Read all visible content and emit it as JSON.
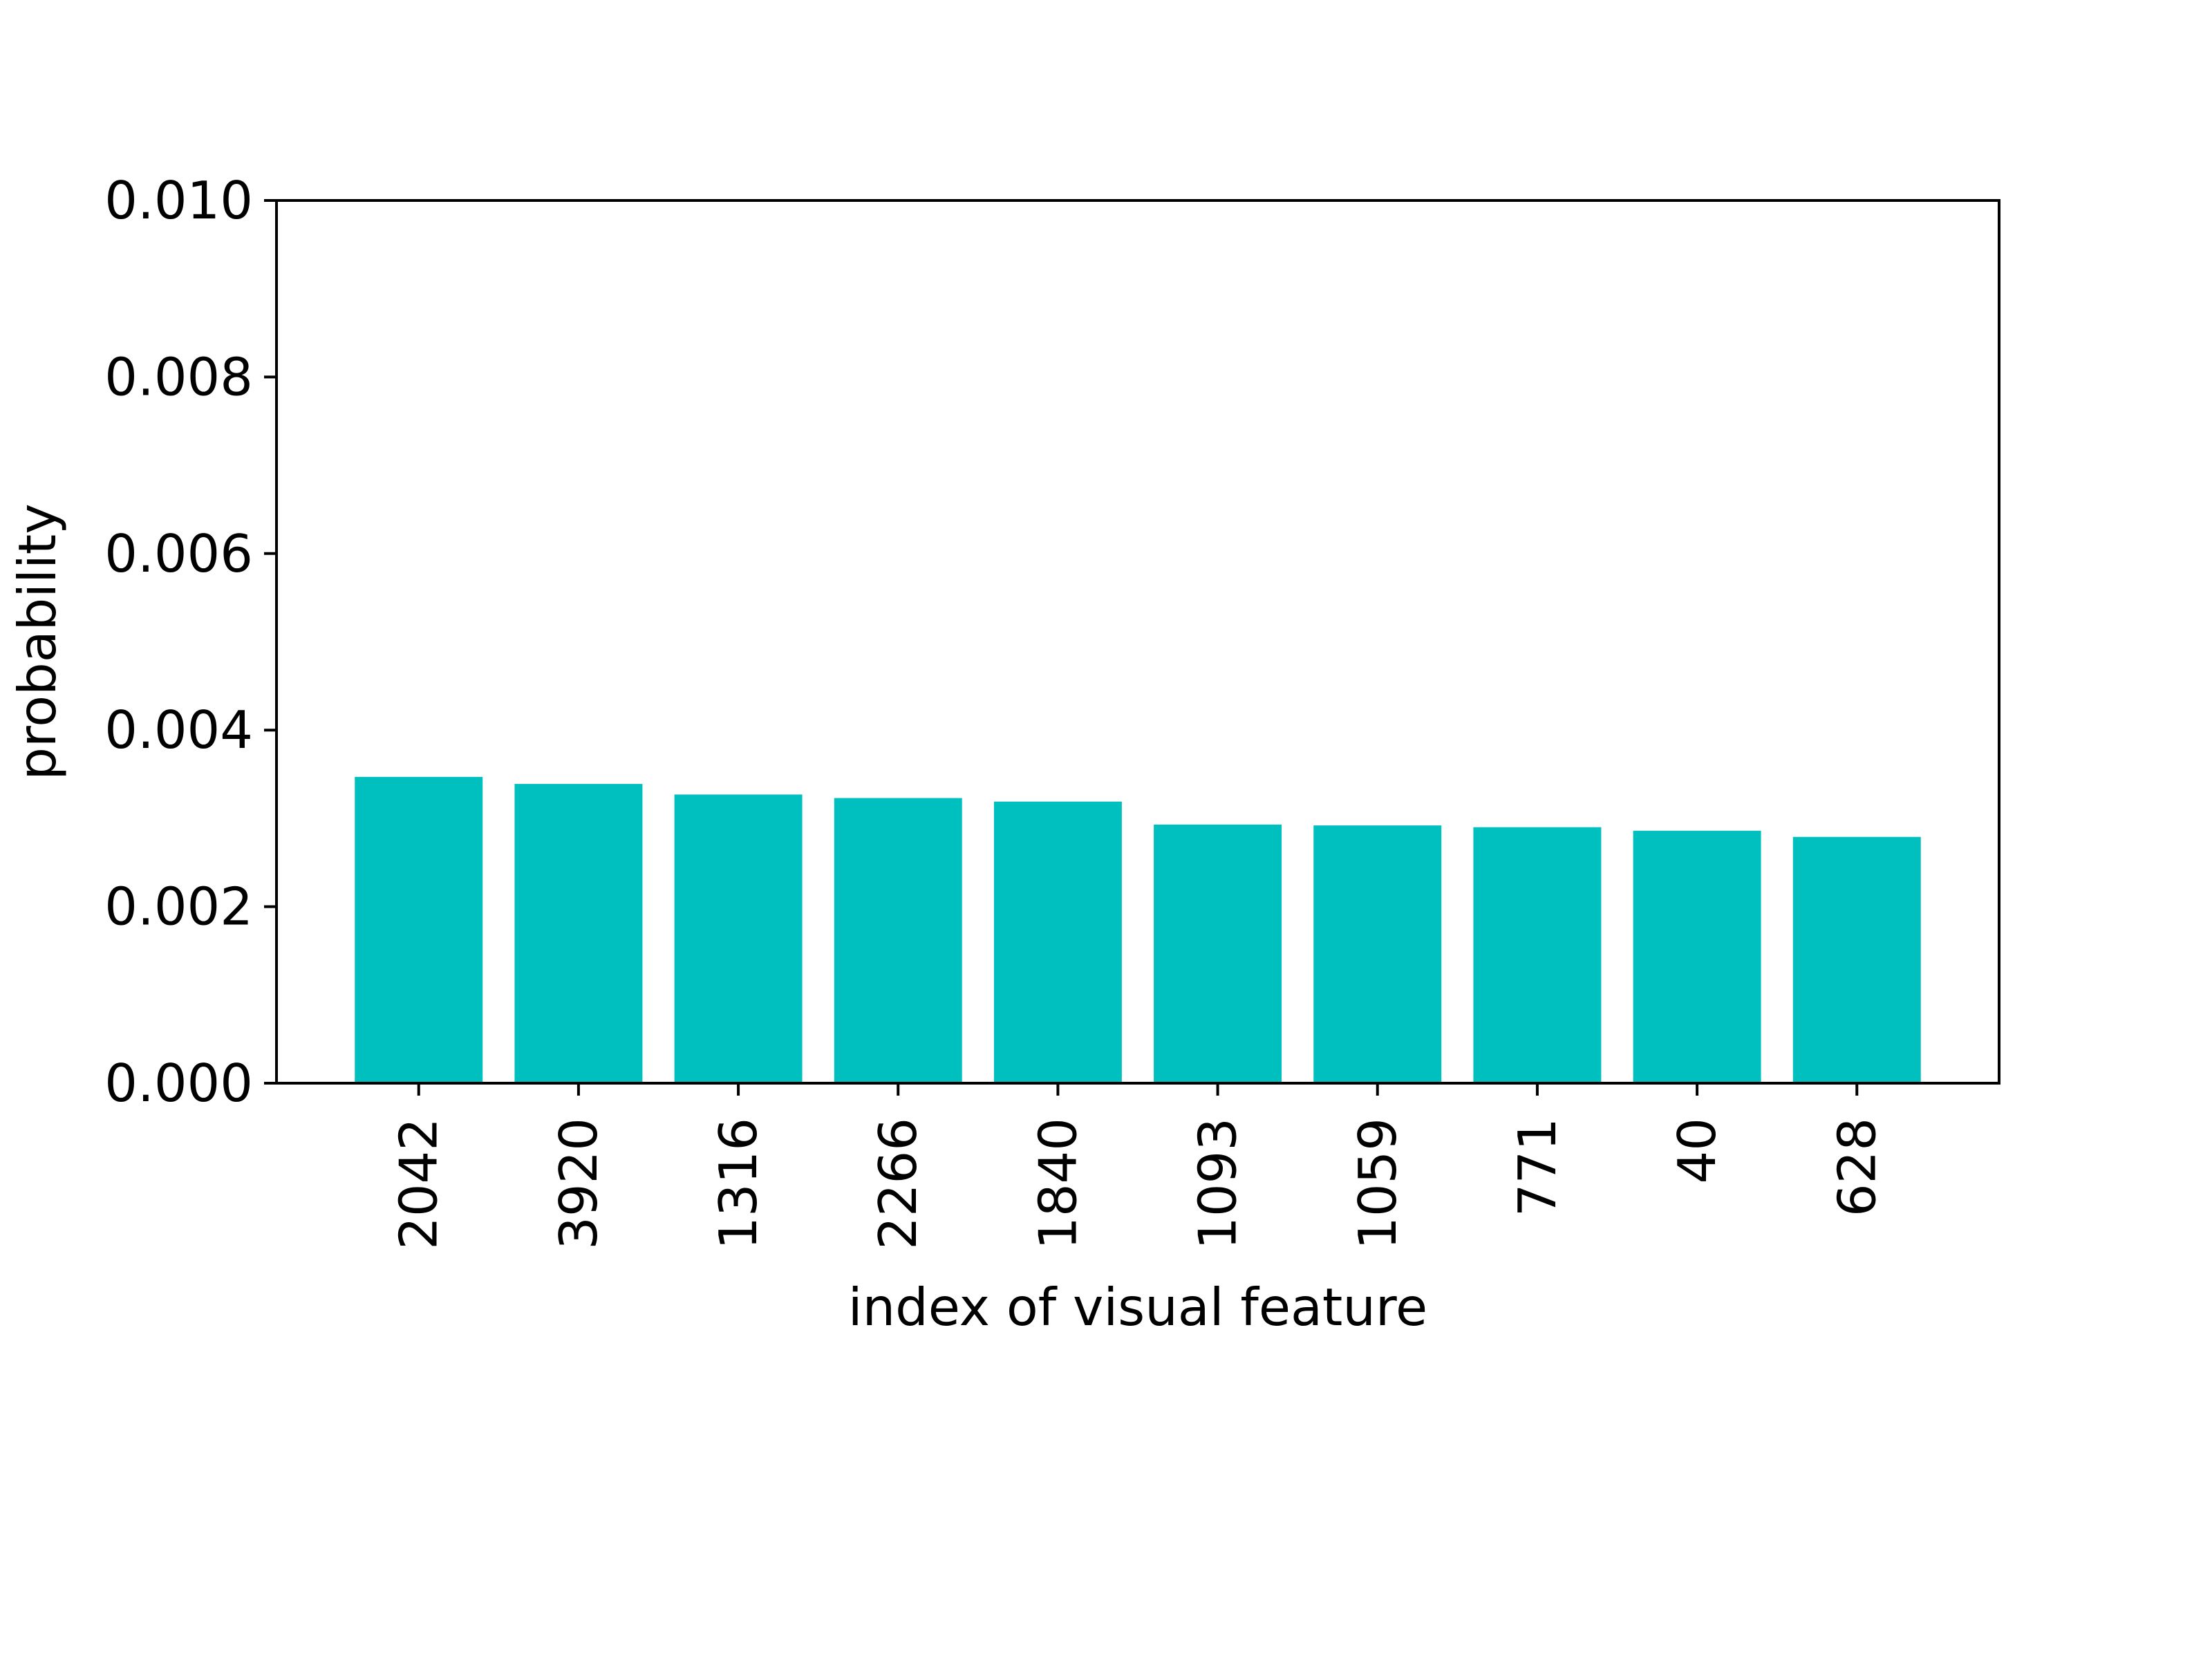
{
  "chart_data": {
    "type": "bar",
    "title": "",
    "xlabel": "index of visual feature",
    "ylabel": "probability",
    "categories": [
      "2042",
      "3920",
      "1316",
      "2266",
      "1840",
      "1093",
      "1059",
      "771",
      "40",
      "628"
    ],
    "values": [
      0.00347,
      0.00339,
      0.00327,
      0.00323,
      0.00319,
      0.00293,
      0.00292,
      0.0029,
      0.00286,
      0.00279
    ],
    "ylim": [
      0,
      0.01
    ],
    "yticks": [
      "0.000",
      "0.002",
      "0.004",
      "0.006",
      "0.008",
      "0.010"
    ],
    "grid": false,
    "bar_color": "#00bfbf",
    "axis_color": "#000000"
  }
}
